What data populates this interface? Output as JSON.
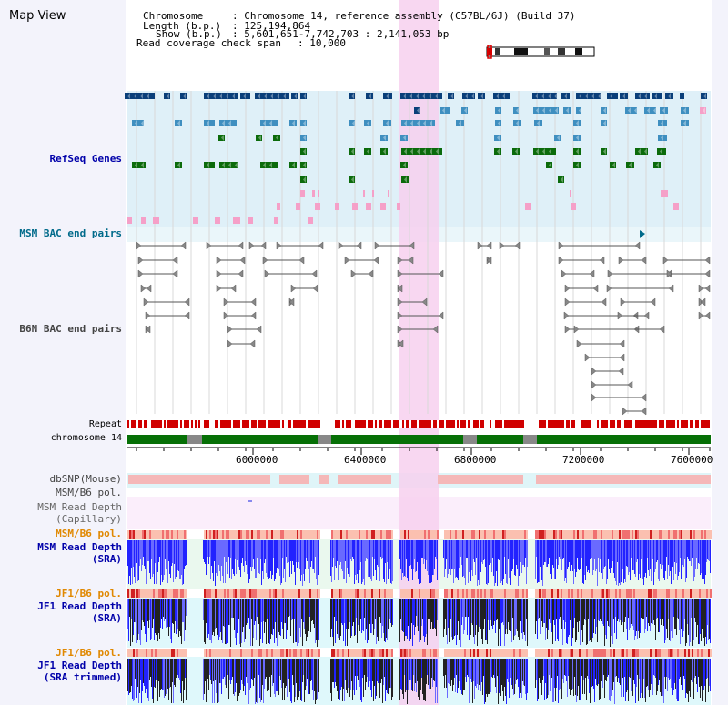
{
  "window": {
    "title": "Map View"
  },
  "info": {
    "chromosome_label": "Chromosome",
    "chromosome_value": ": Chromosome 14, reference assembly (C57BL/6J) (Build 37)",
    "length_label": "Length (b.p.)",
    "length_value": ": 125,194,864",
    "show_label": "Show (b.p.)",
    "show_value": ": 5,601,651-7,742,703 : 2,141,053 bp",
    "coverage_label": "Read coverage check span",
    "coverage_value": ": 10,000"
  },
  "tracks": {
    "refseq": "RefSeq Genes",
    "msm_bac": "MSM BAC end pairs",
    "b6n_bac": "B6N BAC end pairs",
    "repeat": "Repeat",
    "chromosome": "chromosome 14",
    "dbsnp": "dbSNP(Mouse)",
    "msm_b6_pol_1": "MSM/B6 pol.",
    "msm_depth_cap_1": "MSM Read Depth",
    "msm_depth_cap_2": "(Capillary)",
    "msm_b6_pol_2": "MSM/B6 pol.",
    "msm_depth_sra_1": "MSM Read Depth",
    "msm_depth_sra_2": "(SRA)",
    "jf1_b6_pol_1": "JF1/B6 pol.",
    "jf1_depth_sra_1": "JF1 Read Depth",
    "jf1_depth_sra_2": "(SRA)",
    "jf1_b6_pol_2": "JF1/B6 pol.",
    "jf1_trim_1": "JF1 Read Depth",
    "jf1_trim_2": "(SRA trimmed)"
  },
  "axis": {
    "ticks": [
      "6000000",
      "6400000",
      "6800000",
      "7200000",
      "7600000"
    ]
  },
  "colors": {
    "gene_dark": "#0a3f7a",
    "gene_mid": "#3f8fc0",
    "gene_green": "#0b6b0b",
    "pink": "#f5a0c8",
    "highlight": "#f7d0ef",
    "chrom": "#067006",
    "repeat": "#d00000",
    "depth_blue": "#2222ff",
    "msm_label": "#0000aa",
    "orange": "#e08800",
    "teal": "#006a8a"
  }
}
